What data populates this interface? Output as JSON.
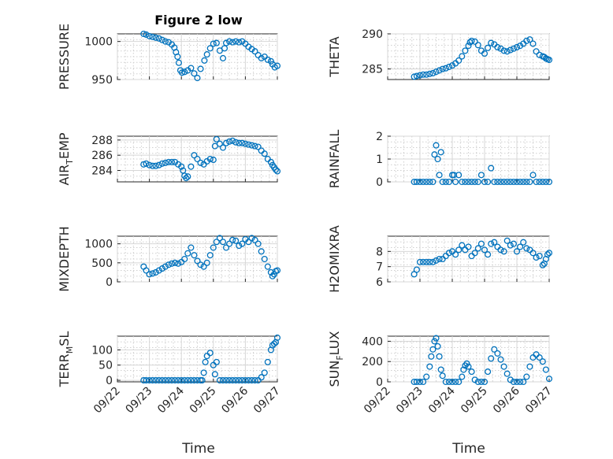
{
  "figure": {
    "title": "Figure 2 low",
    "xlabel": "Time",
    "marker_color": "#0072BD",
    "x_ticks": [
      "09/22",
      "09/23",
      "09/24",
      "09/25",
      "09/26",
      "09/27"
    ]
  },
  "chart_data": [
    {
      "type": "scatter",
      "panel": "left-1",
      "title": "Figure 2 low",
      "ylabel": "PRESSURE",
      "xlim": [
        0,
        5
      ],
      "ylim": [
        950,
        1010
      ],
      "yticks": [
        950,
        1000
      ],
      "marker": "circle",
      "x": [
        0.82,
        0.9,
        1,
        1.1,
        1.2,
        1.3,
        1.4,
        1.5,
        1.6,
        1.7,
        1.78,
        1.83,
        1.88,
        1.92,
        1.97,
        2.02,
        2.1,
        2.2,
        2.3,
        2.4,
        2.5,
        2.6,
        2.72,
        2.8,
        2.9,
        3,
        3.1,
        3.2,
        3.3,
        3.35,
        3.4,
        3.5,
        3.6,
        3.7,
        3.8,
        3.9,
        4,
        4.1,
        4.2,
        4.3,
        4.4,
        4.5,
        4.6,
        4.7,
        4.8,
        4.85,
        4.92,
        5
      ],
      "y": [
        1010,
        1009,
        1007,
        1006,
        1005,
        1004,
        1002,
        1000,
        999,
        996,
        992,
        986,
        980,
        972,
        962,
        959,
        960,
        962,
        965,
        958,
        952,
        964,
        975,
        983,
        991,
        997,
        998,
        988,
        978,
        991,
        998,
        1000,
        999,
        1000,
        999,
        1000,
        997,
        993,
        990,
        987,
        982,
        978,
        980,
        976,
        974,
        970,
        966,
        968
      ]
    },
    {
      "type": "scatter",
      "panel": "right-1",
      "ylabel": "THETA",
      "xlim": [
        0,
        5
      ],
      "ylim": [
        283.5,
        290
      ],
      "yticks": [
        285,
        290
      ],
      "marker": "circle",
      "x": [
        0.82,
        0.9,
        1,
        1.1,
        1.2,
        1.3,
        1.4,
        1.5,
        1.6,
        1.7,
        1.8,
        1.9,
        2,
        2.1,
        2.2,
        2.3,
        2.4,
        2.5,
        2.55,
        2.6,
        2.7,
        2.8,
        2.9,
        3,
        3.1,
        3.2,
        3.3,
        3.4,
        3.5,
        3.6,
        3.7,
        3.8,
        3.9,
        4,
        4.1,
        4.2,
        4.3,
        4.4,
        4.5,
        4.6,
        4.7,
        4.8,
        4.85,
        4.9,
        4.95,
        5
      ],
      "y": [
        283.9,
        284,
        284.1,
        284.2,
        284.2,
        284.3,
        284.4,
        284.6,
        284.8,
        285,
        285.1,
        285.3,
        285.5,
        285.8,
        286.2,
        286.8,
        287.6,
        288.3,
        288.8,
        289,
        288.9,
        288.4,
        287.6,
        287.2,
        288,
        288.7,
        288.5,
        288.1,
        287.9,
        287.6,
        287.5,
        287.7,
        287.9,
        288.1,
        288.3,
        288.6,
        289,
        289.2,
        288.6,
        287.5,
        287,
        286.8,
        286.7,
        286.5,
        286.4,
        286.3
      ]
    },
    {
      "type": "scatter",
      "panel": "left-2",
      "ylabel": "AIR_TEMP",
      "xlim": [
        0,
        5
      ],
      "ylim": [
        282.5,
        288.5
      ],
      "yticks": [
        284,
        286,
        288
      ],
      "marker": "circle",
      "x": [
        0.82,
        0.9,
        1,
        1.1,
        1.2,
        1.3,
        1.4,
        1.5,
        1.6,
        1.7,
        1.8,
        1.9,
        2,
        2.05,
        2.1,
        2.15,
        2.2,
        2.3,
        2.4,
        2.5,
        2.6,
        2.7,
        2.8,
        2.9,
        3,
        3.05,
        3.1,
        3.2,
        3.3,
        3.4,
        3.5,
        3.6,
        3.7,
        3.8,
        3.9,
        4,
        4.1,
        4.2,
        4.3,
        4.4,
        4.5,
        4.6,
        4.7,
        4.8,
        4.85,
        4.9,
        4.95,
        5
      ],
      "y": [
        284.8,
        284.9,
        284.7,
        284.6,
        284.6,
        284.7,
        284.9,
        285,
        285.1,
        285.1,
        285.1,
        284.8,
        284.5,
        284,
        283.3,
        283,
        283.2,
        284.5,
        286,
        285.5,
        285,
        284.8,
        285.2,
        285.5,
        285.4,
        287.2,
        288.1,
        287.5,
        287,
        287.6,
        287.8,
        287.9,
        287.7,
        287.6,
        287.6,
        287.5,
        287.4,
        287.3,
        287.2,
        287.1,
        286.6,
        286.2,
        285.5,
        285.1,
        284.7,
        284.4,
        284.1,
        283.9
      ]
    },
    {
      "type": "scatter",
      "panel": "right-2",
      "ylabel": "RAINFALL",
      "xlim": [
        0,
        5
      ],
      "ylim": [
        0,
        2
      ],
      "yticks": [
        0,
        1,
        2
      ],
      "marker": "circle",
      "x": [
        0.82,
        0.9,
        1,
        1.1,
        1.2,
        1.3,
        1.4,
        1.45,
        1.5,
        1.55,
        1.6,
        1.65,
        1.7,
        1.8,
        1.9,
        2,
        2.05,
        2.1,
        2.2,
        2.3,
        2.4,
        2.5,
        2.6,
        2.7,
        2.8,
        2.9,
        3,
        3.1,
        3.2,
        3.3,
        3.4,
        3.5,
        3.6,
        3.7,
        3.8,
        3.9,
        4,
        4.1,
        4.2,
        4.3,
        4.4,
        4.5,
        4.6,
        4.7,
        4.8,
        4.9,
        5
      ],
      "y": [
        0,
        0,
        0,
        0,
        0,
        0,
        0,
        1.2,
        1.6,
        1,
        0.3,
        1.3,
        0,
        0,
        0,
        0.3,
        0.3,
        0,
        0.3,
        0,
        0,
        0,
        0,
        0,
        0,
        0.3,
        0,
        0,
        0.6,
        0,
        0,
        0,
        0,
        0,
        0,
        0,
        0,
        0,
        0,
        0,
        0,
        0.3,
        0,
        0,
        0,
        0,
        0
      ]
    },
    {
      "type": "scatter",
      "panel": "left-3",
      "ylabel": "MIXDEPTH",
      "xlim": [
        0,
        5
      ],
      "ylim": [
        0,
        1200
      ],
      "yticks": [
        0,
        500,
        1000
      ],
      "marker": "circle",
      "x": [
        0.82,
        0.9,
        1,
        1.1,
        1.2,
        1.3,
        1.4,
        1.5,
        1.6,
        1.7,
        1.8,
        1.9,
        2,
        2.1,
        2.2,
        2.3,
        2.4,
        2.5,
        2.6,
        2.7,
        2.8,
        2.9,
        3,
        3.1,
        3.2,
        3.3,
        3.4,
        3.5,
        3.6,
        3.7,
        3.8,
        3.9,
        4,
        4.1,
        4.2,
        4.3,
        4.4,
        4.5,
        4.6,
        4.7,
        4.8,
        4.85,
        4.9,
        4.95,
        5
      ],
      "y": [
        400,
        300,
        200,
        220,
        250,
        300,
        350,
        400,
        450,
        480,
        500,
        480,
        520,
        600,
        750,
        900,
        700,
        550,
        450,
        400,
        500,
        700,
        900,
        1050,
        1150,
        1050,
        900,
        1000,
        1100,
        1080,
        950,
        1000,
        1120,
        1050,
        1150,
        1100,
        1000,
        800,
        600,
        400,
        250,
        150,
        200,
        280,
        300
      ]
    },
    {
      "type": "scatter",
      "panel": "right-3",
      "ylabel": "H2OMIXRA",
      "xlim": [
        0,
        5
      ],
      "ylim": [
        6,
        9
      ],
      "yticks": [
        6,
        7,
        8
      ],
      "marker": "circle",
      "x": [
        0.82,
        0.9,
        1,
        1.1,
        1.2,
        1.3,
        1.4,
        1.5,
        1.6,
        1.7,
        1.8,
        1.9,
        2,
        2.1,
        2.2,
        2.3,
        2.4,
        2.5,
        2.6,
        2.7,
        2.8,
        2.9,
        3,
        3.1,
        3.2,
        3.3,
        3.4,
        3.5,
        3.6,
        3.7,
        3.8,
        3.9,
        4,
        4.1,
        4.2,
        4.3,
        4.4,
        4.5,
        4.6,
        4.7,
        4.8,
        4.85,
        4.9,
        4.95,
        5
      ],
      "y": [
        6.5,
        6.8,
        7.3,
        7.3,
        7.3,
        7.3,
        7.3,
        7.4,
        7.5,
        7.5,
        7.7,
        7.9,
        8,
        7.8,
        8.1,
        8.4,
        8.1,
        8.3,
        7.7,
        7.9,
        8.2,
        8.5,
        8.1,
        7.8,
        8.5,
        8.6,
        8.3,
        8.1,
        8,
        8.7,
        8.4,
        8.5,
        8,
        8.3,
        8.6,
        8.2,
        8.1,
        7.9,
        7.6,
        7.7,
        7.1,
        7.2,
        7.5,
        7.8,
        7.9
      ]
    },
    {
      "type": "scatter",
      "panel": "left-4",
      "ylabel": "TERR_MSL",
      "xlim": [
        0,
        5
      ],
      "ylim": [
        -5,
        145
      ],
      "yticks": [
        0,
        50,
        100
      ],
      "marker": "circle",
      "x": [
        0.82,
        0.9,
        1,
        1.1,
        1.2,
        1.3,
        1.4,
        1.5,
        1.6,
        1.7,
        1.8,
        1.9,
        2,
        2.1,
        2.2,
        2.3,
        2.4,
        2.5,
        2.6,
        2.65,
        2.7,
        2.75,
        2.8,
        2.9,
        3,
        3.05,
        3.1,
        3.2,
        3.3,
        3.4,
        3.5,
        3.6,
        3.7,
        3.8,
        3.9,
        4,
        4.1,
        4.2,
        4.3,
        4.4,
        4.5,
        4.6,
        4.7,
        4.8,
        4.85,
        4.9,
        4.95,
        5
      ],
      "y": [
        0,
        0,
        0,
        0,
        0,
        0,
        0,
        0,
        0,
        0,
        0,
        0,
        0,
        0,
        0,
        0,
        0,
        0,
        0,
        0,
        25,
        60,
        80,
        90,
        50,
        20,
        60,
        0,
        0,
        0,
        0,
        0,
        0,
        0,
        0,
        0,
        0,
        0,
        0,
        0,
        10,
        25,
        60,
        100,
        115,
        120,
        125,
        140
      ]
    },
    {
      "type": "scatter",
      "panel": "right-4",
      "ylabel": "SUN_FLUX",
      "xlim": [
        0,
        5
      ],
      "ylim": [
        0,
        450
      ],
      "yticks": [
        0,
        200,
        400
      ],
      "marker": "circle",
      "x": [
        0.82,
        0.9,
        1,
        1.1,
        1.2,
        1.3,
        1.35,
        1.4,
        1.45,
        1.5,
        1.55,
        1.6,
        1.65,
        1.7,
        1.8,
        1.9,
        2,
        2.1,
        2.2,
        2.3,
        2.35,
        2.4,
        2.45,
        2.5,
        2.6,
        2.7,
        2.8,
        2.9,
        3,
        3.1,
        3.2,
        3.3,
        3.4,
        3.5,
        3.6,
        3.7,
        3.8,
        3.9,
        4,
        4.1,
        4.2,
        4.3,
        4.4,
        4.5,
        4.6,
        4.7,
        4.8,
        4.9,
        5
      ],
      "y": [
        0,
        0,
        0,
        0,
        50,
        150,
        250,
        320,
        400,
        430,
        350,
        250,
        120,
        60,
        0,
        0,
        0,
        0,
        0,
        50,
        120,
        160,
        180,
        150,
        100,
        20,
        0,
        0,
        0,
        100,
        230,
        320,
        280,
        220,
        150,
        80,
        20,
        0,
        0,
        0,
        0,
        50,
        150,
        240,
        270,
        240,
        200,
        120,
        30
      ]
    }
  ]
}
